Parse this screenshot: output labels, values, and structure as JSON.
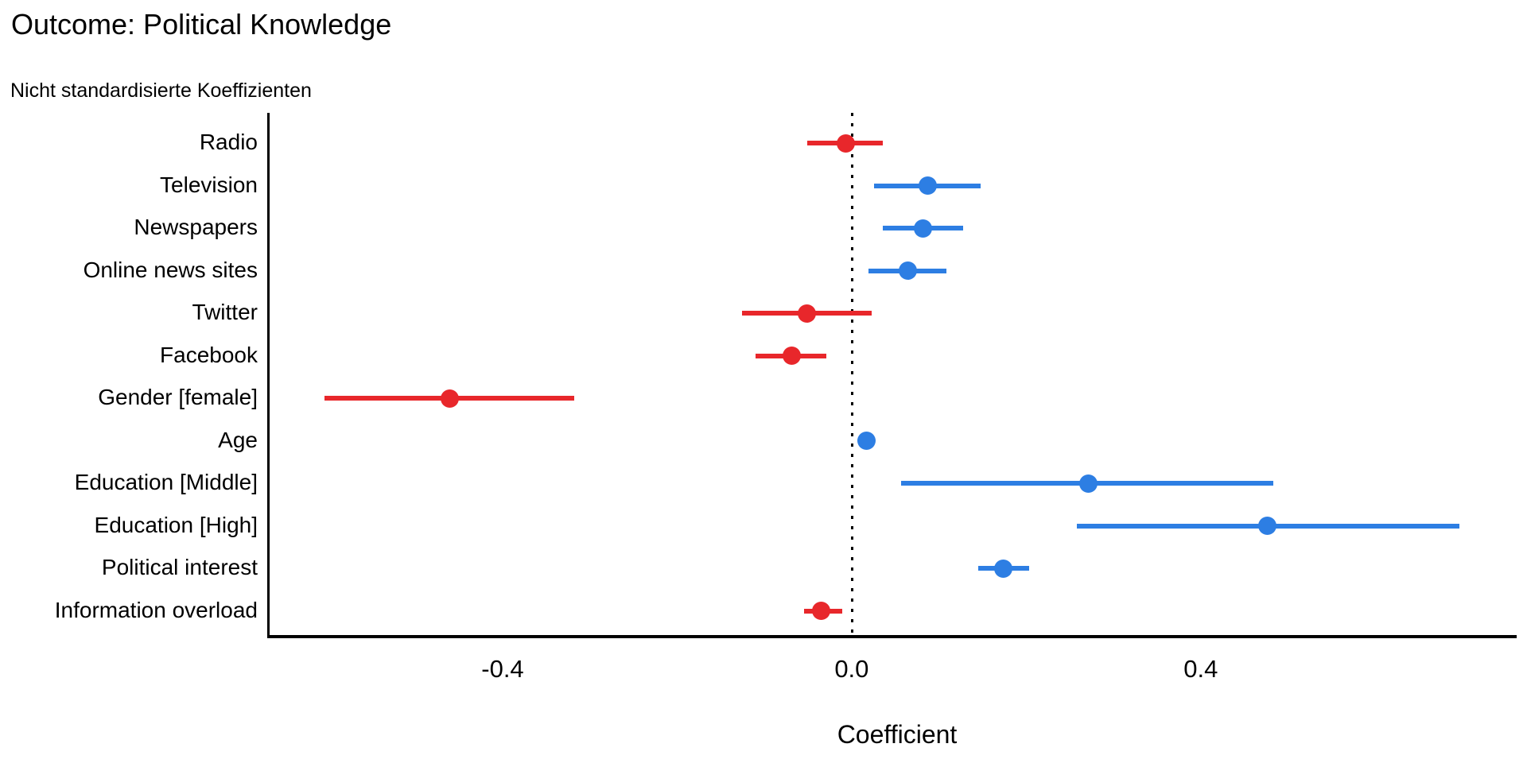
{
  "header": {
    "title": "Outcome: Political Knowledge",
    "subtitle": "Nicht standardisierte Koeffizienten"
  },
  "chart_data": {
    "type": "scatter",
    "subtype": "coefficient-forest-plot-with-error-bars",
    "title": "Outcome: Political Knowledge",
    "subtitle": "Nicht standardisierte Koeffizienten",
    "xlabel": "Coefficient",
    "ylabel": "",
    "xlim": [
      -0.667,
      0.762
    ],
    "x_ticks": [
      -0.4,
      0.0,
      0.4
    ],
    "x_tick_labels": [
      "-0.4",
      "0.0",
      "0.4"
    ],
    "zero_reference_line": 0,
    "grid": false,
    "legend": false,
    "colors": {
      "positive": "#2d7ee3",
      "negative": "#e8272b",
      "axis": "#000000",
      "background": "#ffffff"
    },
    "points": [
      {
        "label": "Radio",
        "estimate": -0.007,
        "ci_low": -0.051,
        "ci_high": 0.036,
        "direction": "negative"
      },
      {
        "label": "Television",
        "estimate": 0.087,
        "ci_low": 0.026,
        "ci_high": 0.148,
        "direction": "positive"
      },
      {
        "label": "Newspapers",
        "estimate": 0.082,
        "ci_low": 0.036,
        "ci_high": 0.128,
        "direction": "positive"
      },
      {
        "label": "Online news sites",
        "estimate": 0.064,
        "ci_low": 0.019,
        "ci_high": 0.109,
        "direction": "positive"
      },
      {
        "label": "Twitter",
        "estimate": -0.051,
        "ci_low": -0.126,
        "ci_high": 0.023,
        "direction": "negative"
      },
      {
        "label": "Facebook",
        "estimate": -0.069,
        "ci_low": -0.11,
        "ci_high": -0.029,
        "direction": "negative"
      },
      {
        "label": "Gender [female]",
        "estimate": -0.461,
        "ci_low": -0.604,
        "ci_high": -0.318,
        "direction": "negative"
      },
      {
        "label": "Age",
        "estimate": 0.017,
        "ci_low": 0.01,
        "ci_high": 0.025,
        "direction": "positive"
      },
      {
        "label": "Education [Middle]",
        "estimate": 0.271,
        "ci_low": 0.057,
        "ci_high": 0.483,
        "direction": "positive"
      },
      {
        "label": "Education [High]",
        "estimate": 0.476,
        "ci_low": 0.258,
        "ci_high": 0.696,
        "direction": "positive"
      },
      {
        "label": "Political interest",
        "estimate": 0.174,
        "ci_low": 0.145,
        "ci_high": 0.203,
        "direction": "positive"
      },
      {
        "label": "Information overload",
        "estimate": -0.035,
        "ci_low": -0.055,
        "ci_high": -0.011,
        "direction": "negative"
      }
    ]
  }
}
